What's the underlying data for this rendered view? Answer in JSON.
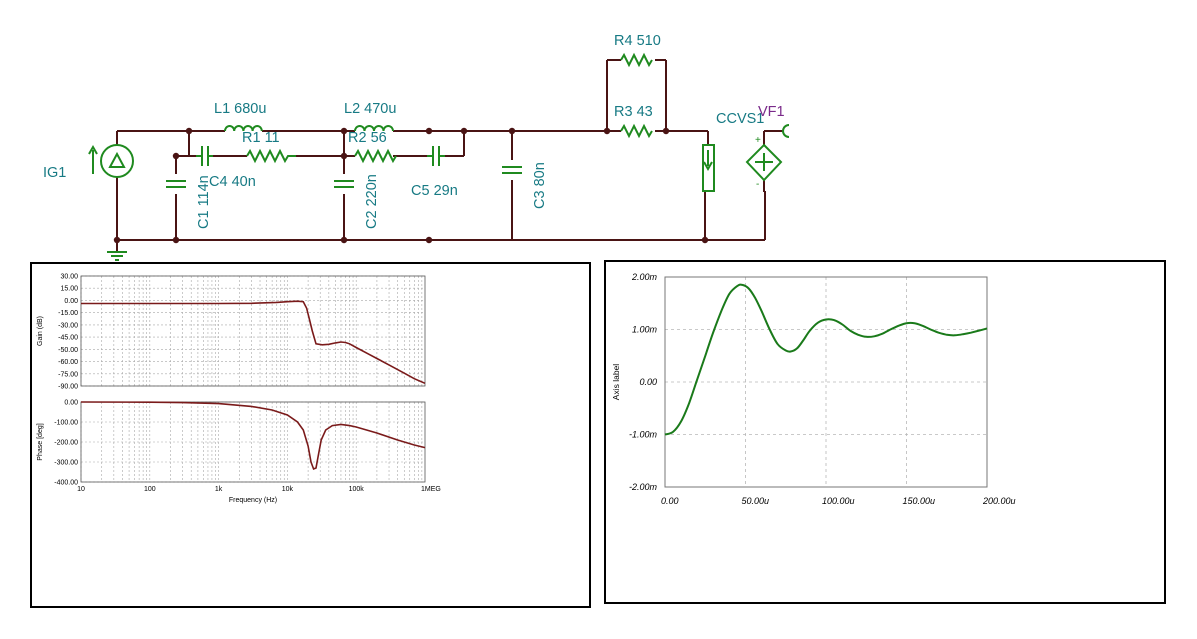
{
  "circuit": {
    "components": {
      "ig1": "IG1",
      "l1": "L1 680u",
      "r1": "R1 11",
      "c4": "C4 40n",
      "c1": "C1 114n",
      "l2": "L2 470u",
      "r2": "R2 56",
      "c2": "C2 220n",
      "c5": "C5 29n",
      "c3": "C3 80n",
      "r4": "R4 510",
      "r3": "R3 43",
      "ccvs": "CCVS1",
      "vf1": "VF1"
    },
    "colors": {
      "wire": "#4a1414",
      "component": "#1f8a1f",
      "label": "#177a84",
      "probe_label": "#7a2a8a"
    }
  },
  "chart_data": [
    {
      "type": "line",
      "subplot": "gain",
      "xscale": "log",
      "xlim": [
        10,
        1000000
      ],
      "x_ticks": [
        "10",
        "100",
        "1k",
        "10k",
        "100k",
        "1MEG"
      ],
      "xlabel": "Frequency (Hz)",
      "ylabel": "Gain (dB)",
      "ylim": [
        -90,
        30
      ],
      "y_ticks": [
        "30.00",
        "15.00",
        "0.00",
        "-15.00",
        "-30.00",
        "-45.00",
        "-50.00",
        "-60.00",
        "-75.00",
        "-90.00"
      ],
      "grid": true,
      "color": "#7a1a1a",
      "x": [
        10,
        100,
        1000,
        3000,
        7000,
        10000,
        14000,
        17000,
        19000,
        21000,
        23000,
        26000,
        32000,
        40000,
        50000,
        60000,
        70000,
        80000,
        100000,
        150000,
        200000,
        300000,
        500000,
        700000,
        1000000
      ],
      "y": [
        0,
        0,
        0,
        0.2,
        1.2,
        2,
        2.5,
        2,
        -5,
        -18,
        -30,
        -44,
        -45,
        -44.5,
        -43,
        -42,
        -42.5,
        -44,
        -48,
        -55,
        -60,
        -67,
        -76,
        -82,
        -87
      ]
    },
    {
      "type": "line",
      "subplot": "phase",
      "xscale": "log",
      "xlim": [
        10,
        1000000
      ],
      "x_ticks": [
        "10",
        "100",
        "1k",
        "10k",
        "100k",
        "1MEG"
      ],
      "xlabel": "Frequency (Hz)",
      "ylabel": "Phase [deg]",
      "ylim": [
        -400,
        0
      ],
      "y_ticks": [
        "0.00",
        "-100.00",
        "-200.00",
        "-300.00",
        "-400.00"
      ],
      "grid": true,
      "color": "#7a1a1a",
      "x": [
        10,
        100,
        300,
        1000,
        3000,
        6000,
        10000,
        14000,
        17000,
        20000,
        22000,
        24000,
        26000,
        28000,
        31000,
        36000,
        45000,
        60000,
        80000,
        100000,
        200000,
        400000,
        700000,
        1000000
      ],
      "y": [
        0,
        -1,
        -3,
        -8,
        -22,
        -40,
        -65,
        -100,
        -140,
        -220,
        -300,
        -335,
        -330,
        -270,
        -190,
        -140,
        -118,
        -112,
        -118,
        -125,
        -155,
        -190,
        -215,
        -228
      ]
    },
    {
      "type": "line",
      "subplot": "transient",
      "xlim": [
        0,
        200
      ],
      "x_ticks": [
        "0.00",
        "50.00u",
        "100.00u",
        "150.00u",
        "200.00u"
      ],
      "ylabel": "Axis label",
      "ylim": [
        -2,
        2
      ],
      "y_ticks": [
        "2.00m",
        "1.00m",
        "0.00",
        "-1.00m",
        "-2.00m"
      ],
      "grid": true,
      "color": "#1a7a1a",
      "x": [
        0,
        5,
        10,
        15,
        20,
        25,
        30,
        35,
        40,
        45,
        48,
        52,
        56,
        60,
        65,
        70,
        75,
        78,
        82,
        86,
        90,
        95,
        100,
        105,
        110,
        115,
        120,
        125,
        130,
        135,
        140,
        145,
        150,
        155,
        160,
        165,
        170,
        175,
        180,
        185,
        190,
        195,
        200
      ],
      "y": [
        -1,
        -0.95,
        -0.75,
        -0.4,
        0.05,
        0.5,
        0.95,
        1.35,
        1.68,
        1.83,
        1.85,
        1.78,
        1.6,
        1.35,
        1.0,
        0.72,
        0.6,
        0.58,
        0.64,
        0.8,
        0.98,
        1.13,
        1.19,
        1.18,
        1.1,
        0.98,
        0.9,
        0.86,
        0.87,
        0.92,
        1.0,
        1.07,
        1.12,
        1.12,
        1.07,
        1.0,
        0.94,
        0.9,
        0.89,
        0.91,
        0.94,
        0.98,
        1.02
      ]
    }
  ]
}
